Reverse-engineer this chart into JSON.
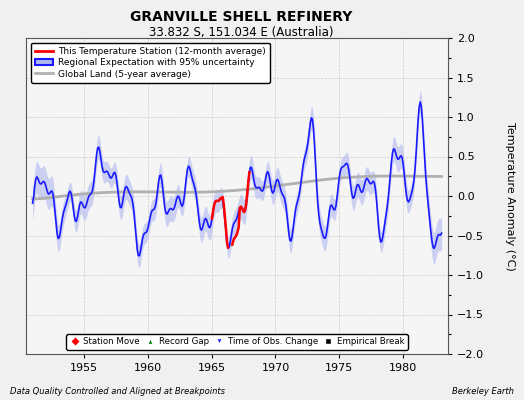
{
  "title": "GRANVILLE SHELL REFINERY",
  "subtitle": "33.832 S, 151.034 E (Australia)",
  "ylabel": "Temperature Anomaly (°C)",
  "footer_left": "Data Quality Controlled and Aligned at Breakpoints",
  "footer_right": "Berkeley Earth",
  "xlim": [
    1950.5,
    1983.5
  ],
  "ylim": [
    -2,
    2
  ],
  "yticks": [
    -2,
    -1.5,
    -1,
    -0.5,
    0,
    0.5,
    1,
    1.5,
    2
  ],
  "xticks": [
    1955,
    1960,
    1965,
    1970,
    1975,
    1980
  ],
  "bg_color": "#f0f0f0",
  "plot_bg_color": "#f5f5f5",
  "grid_color": "#cccccc",
  "regional_color": "#1a1aff",
  "regional_fill_color": "#b0b8f0",
  "station_color": "red",
  "global_color": "#b0b0b0",
  "legend_items": [
    {
      "label": "This Temperature Station (12-month average)",
      "color": "red",
      "lw": 2
    },
    {
      "label": "Regional Expectation with 95% uncertainty",
      "color": "#1a1aff",
      "fill": "#b0b8f0",
      "lw": 2
    },
    {
      "label": "Global Land (5-year average)",
      "color": "#b0b0b0",
      "lw": 2
    }
  ],
  "marker_legend": [
    {
      "marker": "D",
      "color": "red",
      "label": "Station Move"
    },
    {
      "marker": "^",
      "color": "green",
      "label": "Record Gap"
    },
    {
      "marker": "v",
      "color": "#1a1aff",
      "label": "Time of Obs. Change"
    },
    {
      "marker": "s",
      "color": "black",
      "label": "Empirical Break"
    }
  ]
}
